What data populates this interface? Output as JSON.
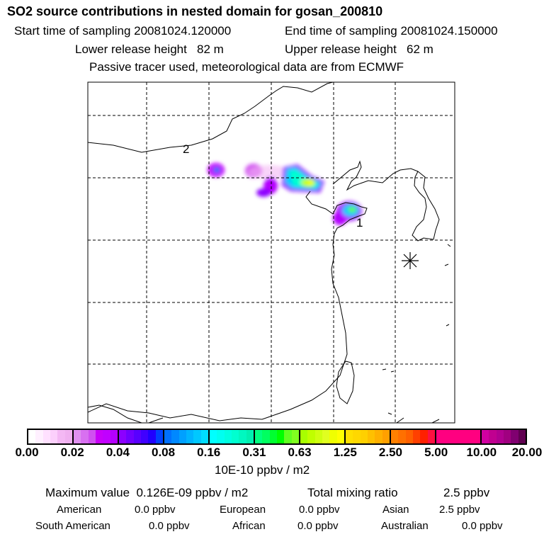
{
  "header": {
    "title": "SO2 source contributions in nested domain for gosan_200810",
    "start_label": "Start time of sampling 20081024.120000",
    "end_label": "End time of sampling 20081024.150000",
    "lower_label": "Lower release height   82 m",
    "upper_label": "Upper release height   62 m",
    "note": "Passive tracer used, meteorological data are from ECMWF"
  },
  "map": {
    "marker_1": "1",
    "marker_2": "2"
  },
  "colorbar": {
    "labels": [
      "0.00",
      "0.02",
      "0.04",
      "0.08",
      "0.16",
      "0.31",
      "0.63",
      "1.25",
      "2.50",
      "5.00",
      "10.00",
      "20.00"
    ],
    "colors": [
      [
        "#ffffff",
        "#fff0ff",
        "#ffe0ff",
        "#fcd0fc",
        "#f4b8f4",
        "#f0b0f0"
      ],
      [
        "#e090f0",
        "#d870f0",
        "#d050f0",
        "#c800f8",
        "#c000ff",
        "#b400ff"
      ],
      [
        "#8c00ff",
        "#7000ff",
        "#5800ff",
        "#4000ff",
        "#2000ff",
        "#0040ff"
      ],
      [
        "#0070ff",
        "#0088ff",
        "#00a0ff",
        "#00b4ff",
        "#00c8ff",
        "#00dcff"
      ],
      [
        "#00ffff",
        "#00fff0",
        "#00ffe0",
        "#00ffd0",
        "#00f8c0",
        "#00f0b0"
      ],
      [
        "#00ff80",
        "#00ff60",
        "#00ff30",
        "#00ff00",
        "#60ff20",
        "#80ff20"
      ],
      [
        "#a8ff00",
        "#c0ff00",
        "#d0ff10",
        "#e0ff20",
        "#f0ff00",
        "#ffff00"
      ],
      [
        "#ffe000",
        "#ffd800",
        "#ffd000",
        "#ffc000",
        "#ffb000",
        "#ffa000"
      ],
      [
        "#ff8000",
        "#ff7000",
        "#ff6000",
        "#ff4000",
        "#ff2000",
        "#ff1040"
      ],
      [
        "#ff0080",
        "#ff0080",
        "#ff0080",
        "#ff0080",
        "#ff0080",
        "#ff0080"
      ],
      [
        "#d000a0",
        "#c00090",
        "#b00090",
        "#a00080",
        "#800070",
        "#600050"
      ]
    ],
    "unit": "10E-10 ppbv / m2"
  },
  "stats": {
    "max_label": "Maximum value  0.126E-09 ppbv / m2",
    "total_label": "Total mixing ratio",
    "total_value": "2.5 ppbv",
    "regions": [
      {
        "name": "American",
        "value": "0.0 ppbv"
      },
      {
        "name": "European",
        "value": "0.0 ppbv"
      },
      {
        "name": "Asian",
        "value": "2.5 ppbv"
      },
      {
        "name": "South American",
        "value": "0.0 ppbv"
      },
      {
        "name": "African",
        "value": "0.0 ppbv"
      },
      {
        "name": "Australian",
        "value": "0.0 ppbv"
      }
    ]
  }
}
